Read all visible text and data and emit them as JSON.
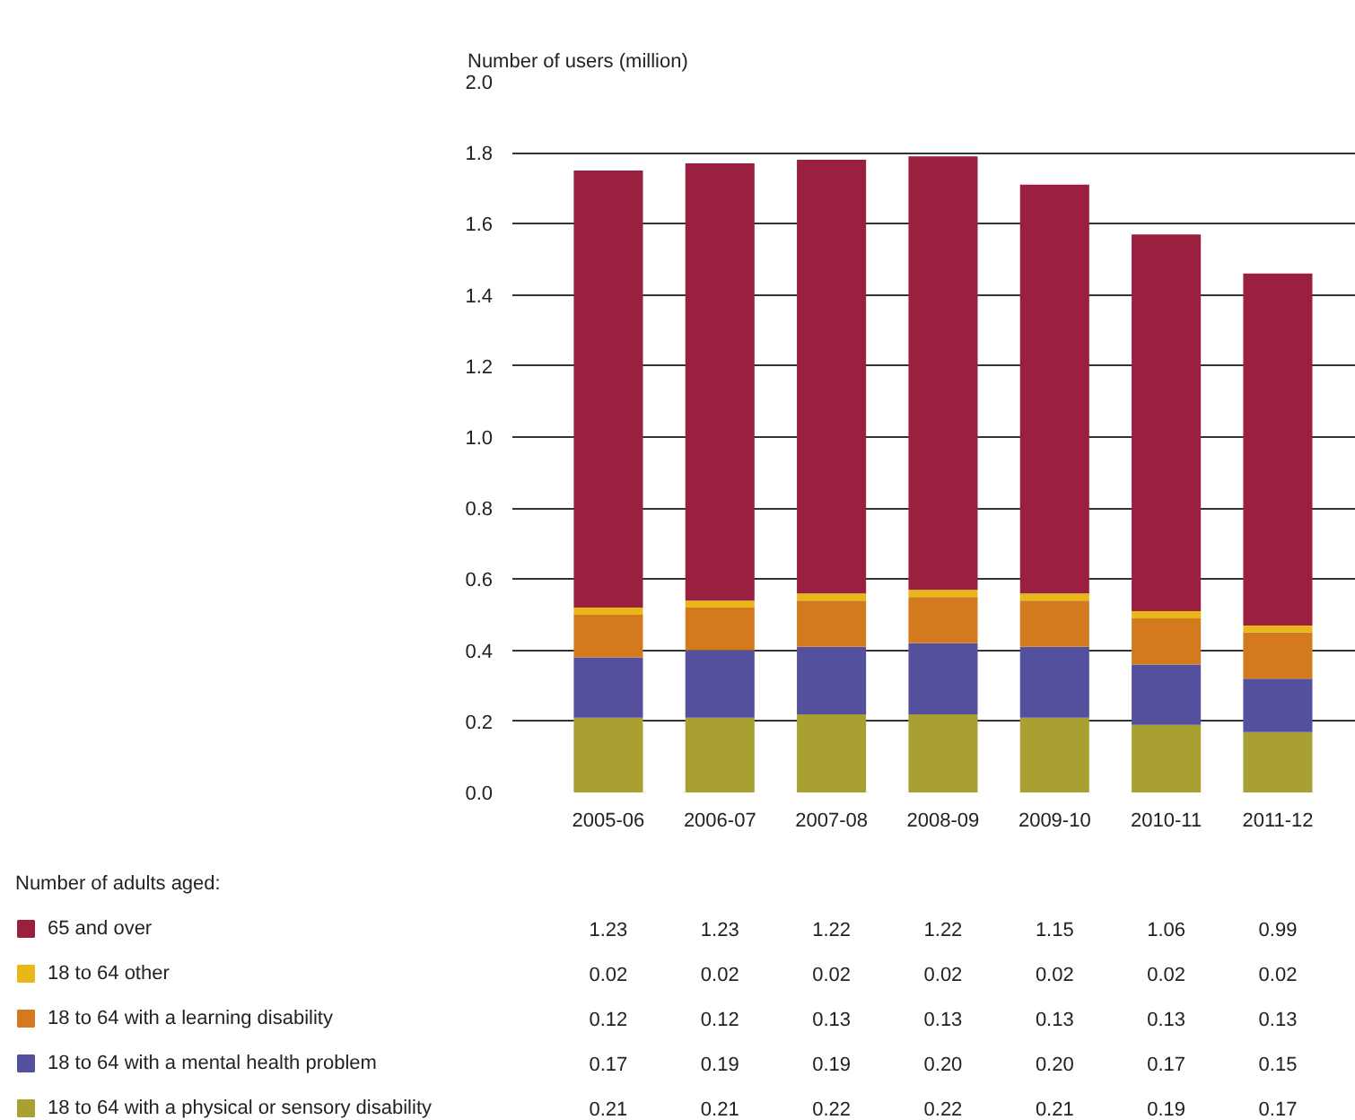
{
  "chart_data": {
    "type": "bar",
    "stacked": true,
    "ylabel": "Number of users (million)",
    "legend_title": "Number of adults aged:",
    "categories": [
      "2005-06",
      "2006-07",
      "2007-08",
      "2008-09",
      "2009-10",
      "2010-11",
      "2011-12"
    ],
    "series": [
      {
        "name": "18 to 64 with a physical or sensory disability",
        "color": "#a8a030",
        "values": [
          0.21,
          0.21,
          0.22,
          0.22,
          0.21,
          0.19,
          0.17
        ],
        "value_labels": [
          "0.21",
          "0.21",
          "0.22",
          "0.22",
          "0.21",
          "0.19",
          "0.17"
        ]
      },
      {
        "name": "18 to 64 with a mental health problem",
        "color": "#54509e",
        "values": [
          0.17,
          0.19,
          0.19,
          0.2,
          0.2,
          0.17,
          0.15
        ],
        "value_labels": [
          "0.17",
          "0.19",
          "0.19",
          "0.20",
          "0.20",
          "0.17",
          "0.15"
        ]
      },
      {
        "name": "18 to 64 with a learning disability",
        "color": "#d47a1e",
        "values": [
          0.12,
          0.12,
          0.13,
          0.13,
          0.13,
          0.13,
          0.13
        ],
        "value_labels": [
          "0.12",
          "0.12",
          "0.13",
          "0.13",
          "0.13",
          "0.13",
          "0.13"
        ]
      },
      {
        "name": "18 to 64 other",
        "color": "#e8b818",
        "values": [
          0.02,
          0.02,
          0.02,
          0.02,
          0.02,
          0.02,
          0.02
        ],
        "value_labels": [
          "0.02",
          "0.02",
          "0.02",
          "0.02",
          "0.02",
          "0.02",
          "0.02"
        ]
      },
      {
        "name": "65 and over",
        "color": "#9b1f3f",
        "values": [
          1.23,
          1.23,
          1.22,
          1.22,
          1.15,
          1.06,
          0.99
        ],
        "value_labels": [
          "1.23",
          "1.23",
          "1.22",
          "1.22",
          "1.15",
          "1.06",
          "0.99"
        ]
      }
    ],
    "ylim": [
      0,
      2.0
    ],
    "yticks": [
      {
        "value": 0,
        "label": "0.0"
      },
      {
        "value": 0.2,
        "label": "0.2"
      },
      {
        "value": 0.4,
        "label": "0.4"
      },
      {
        "value": 0.6,
        "label": "0.6"
      },
      {
        "value": 0.8,
        "label": "0.8"
      },
      {
        "value": 1.0,
        "label": "1.0"
      },
      {
        "value": 1.2,
        "label": "1.2"
      },
      {
        "value": 1.4,
        "label": "1.4"
      },
      {
        "value": 1.6,
        "label": "1.6"
      },
      {
        "value": 1.8,
        "label": "1.8"
      },
      {
        "value": 2.0,
        "label": "2.0"
      }
    ],
    "grid": "y",
    "legend": "bottom"
  }
}
